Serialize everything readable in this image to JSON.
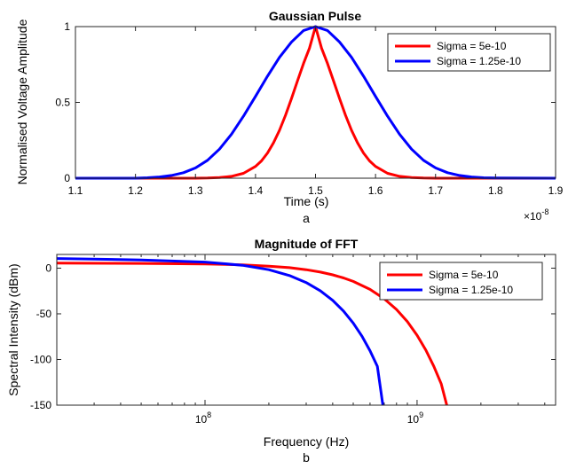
{
  "chart_data": [
    {
      "type": "line",
      "title": "Gaussian Pulse",
      "xlabel": "Time (s)",
      "ylabel": "Normalised Voltage Amplitude",
      "caption": "a",
      "x_exponent_label": "×10",
      "x_exponent": "-8",
      "xlim": [
        1.1,
        1.9
      ],
      "ylim": [
        0,
        1
      ],
      "xticks": [
        "1.1",
        "1.2",
        "1.3",
        "1.4",
        "1.5",
        "1.6",
        "1.7",
        "1.8",
        "1.9"
      ],
      "yticks": [
        "0",
        "0.5",
        "1"
      ],
      "legend_position": "top-right",
      "series": [
        {
          "name": "Sigma = 5e-10",
          "color": "#ff0000",
          "x": [
            1.1,
            1.3,
            1.32,
            1.34,
            1.36,
            1.38,
            1.4,
            1.41,
            1.42,
            1.43,
            1.44,
            1.45,
            1.46,
            1.47,
            1.48,
            1.49,
            1.5,
            1.51,
            1.52,
            1.53,
            1.54,
            1.55,
            1.56,
            1.57,
            1.58,
            1.59,
            1.6,
            1.62,
            1.64,
            1.66,
            1.68,
            1.7,
            1.9
          ],
          "y": [
            0.0,
            0.0,
            0.001,
            0.004,
            0.012,
            0.032,
            0.078,
            0.114,
            0.166,
            0.234,
            0.316,
            0.415,
            0.525,
            0.642,
            0.757,
            0.858,
            1.0,
            0.858,
            0.757,
            0.642,
            0.525,
            0.415,
            0.316,
            0.234,
            0.166,
            0.114,
            0.078,
            0.032,
            0.012,
            0.004,
            0.001,
            0.0,
            0.0
          ]
        },
        {
          "name": "Sigma = 1.25e-10",
          "color": "#0000ff",
          "x": [
            1.1,
            1.2,
            1.22,
            1.24,
            1.26,
            1.28,
            1.3,
            1.32,
            1.34,
            1.36,
            1.38,
            1.4,
            1.42,
            1.44,
            1.46,
            1.48,
            1.5,
            1.52,
            1.54,
            1.56,
            1.58,
            1.6,
            1.62,
            1.64,
            1.66,
            1.68,
            1.7,
            1.72,
            1.74,
            1.76,
            1.78,
            1.8,
            1.9
          ],
          "y": [
            0.0,
            0.0,
            0.003,
            0.008,
            0.018,
            0.036,
            0.068,
            0.118,
            0.192,
            0.29,
            0.409,
            0.54,
            0.673,
            0.797,
            0.898,
            0.974,
            1.0,
            0.974,
            0.898,
            0.797,
            0.673,
            0.54,
            0.409,
            0.29,
            0.192,
            0.118,
            0.068,
            0.036,
            0.018,
            0.008,
            0.003,
            0.001,
            0.0
          ]
        }
      ]
    },
    {
      "type": "line",
      "title": "Magnitude of FFT",
      "xlabel": "Frequency (Hz)",
      "ylabel": "Spectral Intensity (dBm)",
      "caption": "b",
      "x_scale": "log",
      "xlim": [
        20000000,
        4500000000
      ],
      "ylim": [
        -150,
        15
      ],
      "xticks": [
        {
          "value": 100000000,
          "base": "10",
          "exp": "8"
        },
        {
          "value": 1000000000,
          "base": "10",
          "exp": "9"
        }
      ],
      "yticks": [
        "0",
        "-50",
        "-100",
        "-150"
      ],
      "legend_position": "top-right",
      "series": [
        {
          "name": "Sigma = 5e-10",
          "color": "#ff0000",
          "x": [
            20000000,
            50000000,
            100000000,
            150000000,
            200000000,
            250000000,
            300000000,
            350000000,
            400000000,
            450000000,
            500000000,
            600000000,
            700000000,
            800000000,
            900000000,
            1000000000,
            1100000000,
            1200000000,
            1300000000,
            1380000000
          ],
          "y": [
            5.5,
            5.2,
            4.6,
            3.6,
            2.2,
            0.5,
            -1.7,
            -4.3,
            -7.3,
            -10.7,
            -14.5,
            -23.2,
            -33.5,
            -45.3,
            -58.6,
            -73.4,
            -89.7,
            -107.5,
            -126.8,
            -150
          ]
        },
        {
          "name": "Sigma = 1.25e-10",
          "color": "#0000ff",
          "x": [
            20000000,
            50000000,
            100000000,
            150000000,
            200000000,
            250000000,
            300000000,
            350000000,
            400000000,
            450000000,
            500000000,
            550000000,
            600000000,
            650000000,
            690000000
          ],
          "y": [
            10.5,
            9.0,
            6.7,
            3.2,
            -1.7,
            -8.1,
            -15.8,
            -24.9,
            -35.3,
            -47.0,
            -60.1,
            -74.6,
            -90.4,
            -107.6,
            -150
          ]
        }
      ]
    }
  ]
}
